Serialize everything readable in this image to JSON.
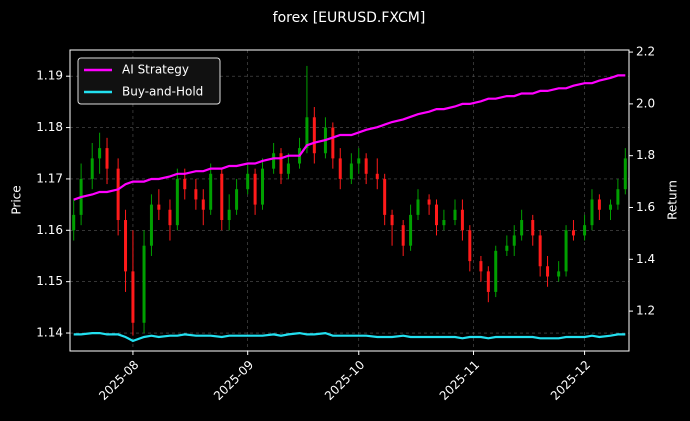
{
  "chart_data": {
    "type": "candlestick",
    "title": "forex [EURUSD.FXCM]",
    "ylabel": "Price",
    "y2label": "Return",
    "x": [
      "2025-07-16",
      "2025-07-18",
      "2025-07-21",
      "2025-07-23",
      "2025-07-25",
      "2025-07-28",
      "2025-07-30",
      "2025-08-01",
      "2025-08-04",
      "2025-08-06",
      "2025-08-08",
      "2025-08-11",
      "2025-08-13",
      "2025-08-15",
      "2025-08-18",
      "2025-08-20",
      "2025-08-22",
      "2025-08-25",
      "2025-08-27",
      "2025-08-29",
      "2025-09-01",
      "2025-09-03",
      "2025-09-05",
      "2025-09-08",
      "2025-09-10",
      "2025-09-12",
      "2025-09-15",
      "2025-09-17",
      "2025-09-19",
      "2025-09-22",
      "2025-09-24",
      "2025-09-26",
      "2025-09-29",
      "2025-10-01",
      "2025-10-03",
      "2025-10-06",
      "2025-10-08",
      "2025-10-10",
      "2025-10-13",
      "2025-10-15",
      "2025-10-17",
      "2025-10-20",
      "2025-10-22",
      "2025-10-24",
      "2025-10-27",
      "2025-10-29",
      "2025-10-31",
      "2025-11-03",
      "2025-11-05",
      "2025-11-07",
      "2025-11-10",
      "2025-11-12",
      "2025-11-14",
      "2025-11-17",
      "2025-11-19",
      "2025-11-21",
      "2025-11-24",
      "2025-11-26",
      "2025-11-28",
      "2025-12-01",
      "2025-12-03",
      "2025-12-05",
      "2025-12-08",
      "2025-12-10",
      "2025-12-12"
    ],
    "open": [
      1.16,
      1.163,
      1.17,
      1.174,
      1.176,
      1.172,
      1.162,
      1.152,
      1.142,
      1.157,
      1.165,
      1.164,
      1.161,
      1.17,
      1.168,
      1.166,
      1.164,
      1.171,
      1.162,
      1.164,
      1.168,
      1.171,
      1.165,
      1.172,
      1.175,
      1.171,
      1.173,
      1.176,
      1.182,
      1.175,
      1.18,
      1.174,
      1.17,
      1.173,
      1.174,
      1.171,
      1.17,
      1.163,
      1.161,
      1.157,
      1.163,
      1.166,
      1.165,
      1.161,
      1.162,
      1.164,
      1.16,
      1.154,
      1.152,
      1.148,
      1.156,
      1.157,
      1.159,
      1.162,
      1.159,
      1.153,
      1.151,
      1.152,
      1.16,
      1.159,
      1.161,
      1.166,
      1.164,
      1.165,
      1.168
    ],
    "high": [
      1.166,
      1.173,
      1.177,
      1.179,
      1.178,
      1.174,
      1.164,
      1.16,
      1.16,
      1.167,
      1.168,
      1.166,
      1.172,
      1.172,
      1.17,
      1.168,
      1.173,
      1.172,
      1.167,
      1.17,
      1.173,
      1.172,
      1.174,
      1.177,
      1.176,
      1.175,
      1.178,
      1.192,
      1.184,
      1.182,
      1.181,
      1.176,
      1.175,
      1.176,
      1.175,
      1.174,
      1.171,
      1.164,
      1.162,
      1.165,
      1.168,
      1.167,
      1.166,
      1.164,
      1.166,
      1.166,
      1.161,
      1.155,
      1.153,
      1.157,
      1.159,
      1.161,
      1.164,
      1.163,
      1.16,
      1.155,
      1.154,
      1.161,
      1.162,
      1.163,
      1.168,
      1.167,
      1.166,
      1.17,
      1.176
    ],
    "low": [
      1.158,
      1.161,
      1.168,
      1.171,
      1.169,
      1.159,
      1.148,
      1.1395,
      1.14,
      1.155,
      1.162,
      1.158,
      1.16,
      1.166,
      1.164,
      1.161,
      1.163,
      1.16,
      1.16,
      1.163,
      1.167,
      1.163,
      1.164,
      1.171,
      1.169,
      1.17,
      1.172,
      1.175,
      1.173,
      1.174,
      1.172,
      1.168,
      1.169,
      1.171,
      1.169,
      1.168,
      1.161,
      1.157,
      1.155,
      1.156,
      1.162,
      1.163,
      1.159,
      1.16,
      1.161,
      1.158,
      1.152,
      1.15,
      1.146,
      1.147,
      1.155,
      1.155,
      1.158,
      1.157,
      1.151,
      1.149,
      1.15,
      1.151,
      1.158,
      1.158,
      1.16,
      1.162,
      1.162,
      1.164,
      1.167
    ],
    "close": [
      1.163,
      1.17,
      1.174,
      1.176,
      1.172,
      1.162,
      1.152,
      1.142,
      1.157,
      1.165,
      1.164,
      1.161,
      1.17,
      1.168,
      1.166,
      1.164,
      1.171,
      1.162,
      1.164,
      1.168,
      1.171,
      1.165,
      1.172,
      1.175,
      1.171,
      1.173,
      1.176,
      1.182,
      1.175,
      1.18,
      1.174,
      1.17,
      1.173,
      1.174,
      1.171,
      1.17,
      1.163,
      1.161,
      1.157,
      1.163,
      1.166,
      1.165,
      1.161,
      1.162,
      1.164,
      1.16,
      1.154,
      1.152,
      1.148,
      1.156,
      1.157,
      1.159,
      1.162,
      1.159,
      1.153,
      1.151,
      1.152,
      1.16,
      1.159,
      1.161,
      1.166,
      1.164,
      1.165,
      1.168,
      1.174
    ],
    "up_color": "#00a000",
    "down_color": "#ff1a1a",
    "series": [
      {
        "name": "AI Strategy",
        "color": "#ff00ff",
        "axis": "y2",
        "values": [
          1.63,
          1.64,
          1.65,
          1.66,
          1.66,
          1.67,
          1.69,
          1.7,
          1.7,
          1.71,
          1.71,
          1.72,
          1.73,
          1.73,
          1.74,
          1.74,
          1.75,
          1.75,
          1.76,
          1.76,
          1.77,
          1.77,
          1.78,
          1.79,
          1.79,
          1.8,
          1.8,
          1.84,
          1.85,
          1.86,
          1.87,
          1.88,
          1.88,
          1.89,
          1.9,
          1.91,
          1.92,
          1.93,
          1.94,
          1.95,
          1.96,
          1.97,
          1.98,
          1.98,
          1.99,
          2.0,
          2.0,
          2.01,
          2.02,
          2.02,
          2.03,
          2.03,
          2.04,
          2.04,
          2.05,
          2.05,
          2.06,
          2.06,
          2.07,
          2.08,
          2.08,
          2.09,
          2.1,
          2.11,
          2.11
        ]
      },
      {
        "name": "Buy-and-Hold",
        "color": "#22e0f0",
        "axis": "y2",
        "values": [
          1.11,
          1.11,
          1.115,
          1.115,
          1.11,
          1.11,
          1.1,
          1.085,
          1.1,
          1.105,
          1.1,
          1.105,
          1.105,
          1.11,
          1.105,
          1.105,
          1.105,
          1.1,
          1.105,
          1.105,
          1.105,
          1.105,
          1.105,
          1.11,
          1.105,
          1.11,
          1.115,
          1.11,
          1.11,
          1.115,
          1.105,
          1.105,
          1.105,
          1.105,
          1.105,
          1.1,
          1.1,
          1.1,
          1.105,
          1.1,
          1.1,
          1.1,
          1.1,
          1.1,
          1.1,
          1.095,
          1.1,
          1.1,
          1.095,
          1.1,
          1.1,
          1.1,
          1.1,
          1.1,
          1.095,
          1.095,
          1.095,
          1.1,
          1.1,
          1.1,
          1.105,
          1.1,
          1.105,
          1.11,
          1.11
        ]
      }
    ],
    "xlim": [
      "2025-07-15",
      "2025-12-13"
    ],
    "xticks": [
      {
        "value": "2025-08-01",
        "label": "2025-08"
      },
      {
        "value": "2025-09-01",
        "label": "2025-09"
      },
      {
        "value": "2025-10-01",
        "label": "2025-10"
      },
      {
        "value": "2025-11-01",
        "label": "2025-11"
      },
      {
        "value": "2025-12-01",
        "label": "2025-12"
      }
    ],
    "ylim": [
      1.1365,
      1.1951
    ],
    "yticks": [
      1.14,
      1.15,
      1.16,
      1.17,
      1.18,
      1.19
    ],
    "y2lim": [
      1.046,
      2.208
    ],
    "y2ticks": [
      1.2,
      1.4,
      1.6,
      1.8,
      {
        "value": 2,
        "label": "2.0"
      },
      2.2
    ],
    "grid": true,
    "legend": "upper left"
  }
}
